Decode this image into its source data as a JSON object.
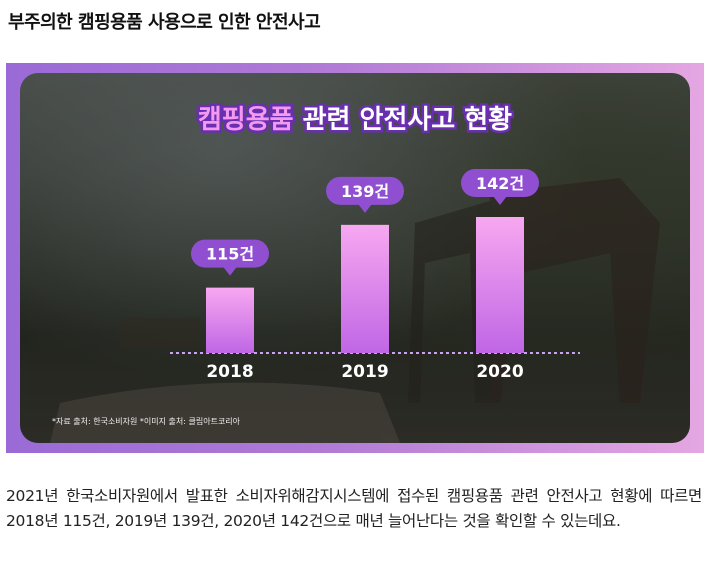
{
  "page": {
    "title": "부주의한 캠핑용품 사용으로 인한 안전사고",
    "body_text": "2021년 한국소비자원에서 발표한 소비자위해감지시스템에 접수된 캠핑용품 관련 안전사고 현황에 따르면 2018년 115건, 2019년 139건, 2020년 142건으로 매년 늘어난다는 것을 확인할 수 있는데요."
  },
  "infographic": {
    "title_highlight": "캠핑용품",
    "title_rest": " 관련 안전사고 현황",
    "source_note": "*자료 출처: 한국소비자원    *이미지 출처: 클립아트코리아"
  },
  "colors": {
    "frame_left": "#9a6ad6",
    "frame_right": "#e4a7e2",
    "bar_top": "#f7a8f0",
    "bar_bottom": "#c066e6",
    "label_pill": "#8f4fd0",
    "title_highlight": "#f39af0"
  },
  "chart_data": {
    "type": "bar",
    "title": "캠핑용품 관련 안전사고 현황",
    "categories": [
      "2018",
      "2019",
      "2020"
    ],
    "values": [
      115,
      139,
      142
    ],
    "data_labels": [
      "115건",
      "139건",
      "142건"
    ],
    "ylim": [
      0,
      150
    ],
    "grid": false,
    "legend": "none"
  }
}
